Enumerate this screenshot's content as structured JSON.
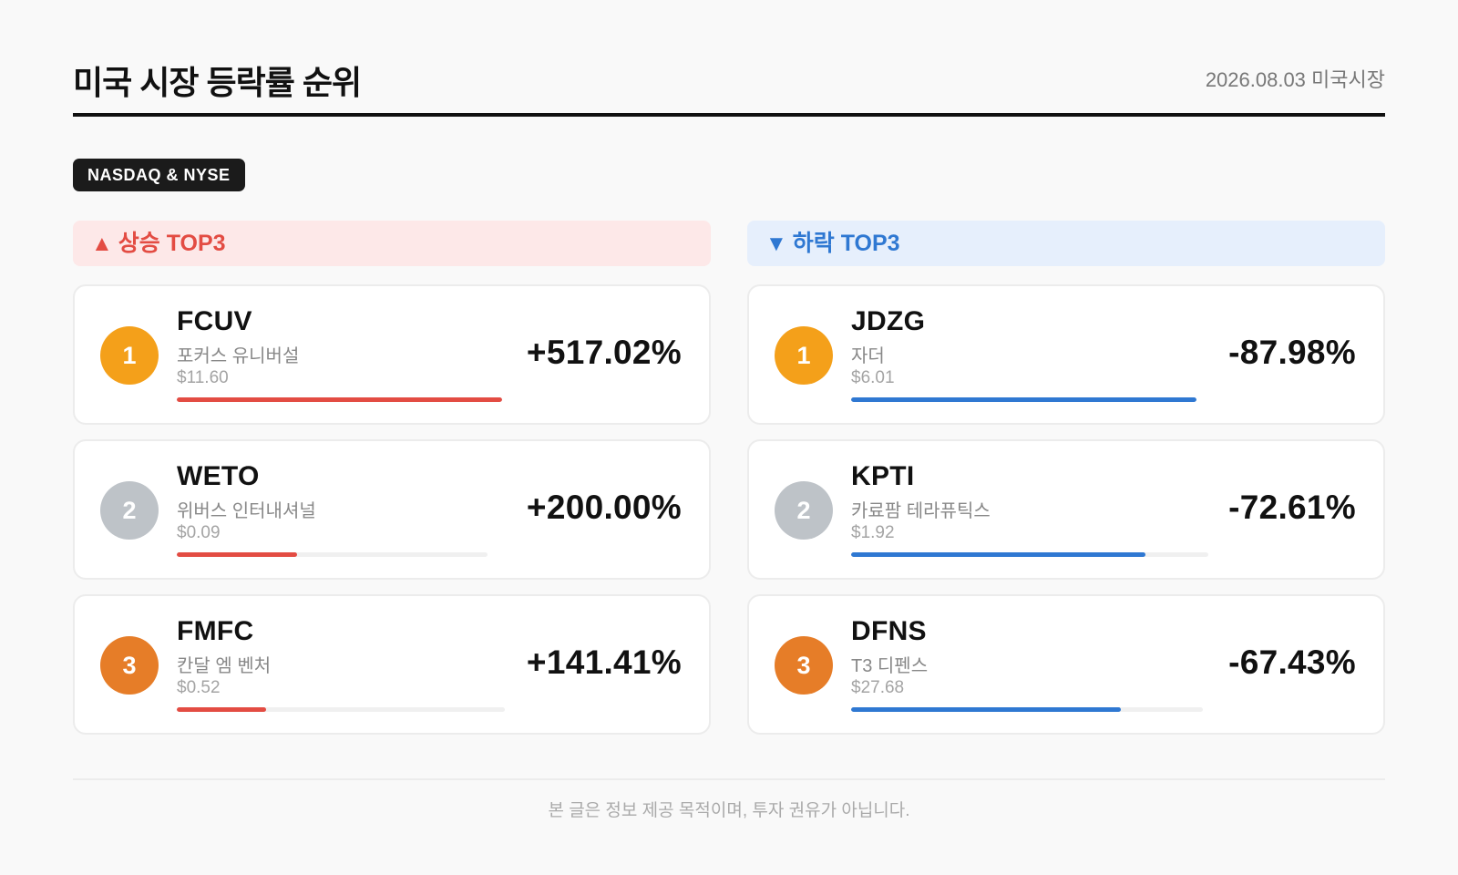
{
  "header": {
    "title": "미국 시장 등락률 순위",
    "date": "2026.08.03 미국시장"
  },
  "market_badge": "NASDAQ & NYSE",
  "gainers": {
    "arrow": "▲",
    "label": "상승 TOP3",
    "accent_color": "#e34c43",
    "items": [
      {
        "rank": "1",
        "ticker": "FCUV",
        "name": "포커스 유니버설",
        "price": "$11.60",
        "change": "+517.02%",
        "bar_fill": 1.0
      },
      {
        "rank": "2",
        "ticker": "WETO",
        "name": "위버스 인터내셔널",
        "price": "$0.09",
        "change": "+200.00%",
        "bar_fill": 0.387
      },
      {
        "rank": "3",
        "ticker": "FMFC",
        "name": "칸달 엠 벤처",
        "price": "$0.52",
        "change": "+141.41%",
        "bar_fill": 0.273
      }
    ]
  },
  "losers": {
    "arrow": "▼",
    "label": "하락 TOP3",
    "accent_color": "#2f78d2",
    "items": [
      {
        "rank": "1",
        "ticker": "JDZG",
        "name": "자더",
        "price": "$6.01",
        "change": "-87.98%",
        "bar_fill": 1.0
      },
      {
        "rank": "2",
        "ticker": "KPTI",
        "name": "카료팜 테라퓨틱스",
        "price": "$1.92",
        "change": "-72.61%",
        "bar_fill": 0.825
      },
      {
        "rank": "3",
        "ticker": "DFNS",
        "name": "T3 디펜스",
        "price": "$27.68",
        "change": "-67.43%",
        "bar_fill": 0.766
      }
    ]
  },
  "footer": "본 글은 정보 제공 목적이며, 투자 권유가 아닙니다."
}
